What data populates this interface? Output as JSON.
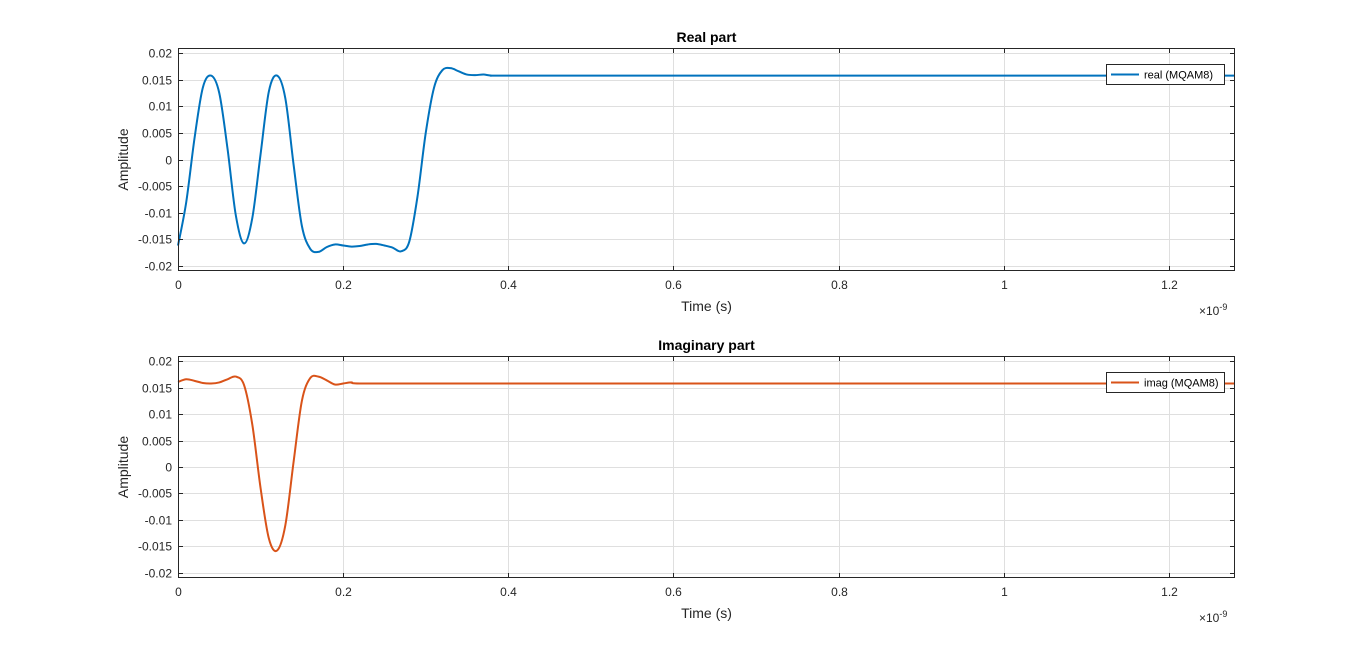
{
  "chart_data": [
    {
      "type": "line",
      "title": "Real part",
      "xlabel": "Time (s)",
      "ylabel": "Amplitude",
      "x_exponent_label": "×10",
      "x_exponent_power": "-9",
      "xlim": [
        0,
        1.28
      ],
      "ylim": [
        -0.021,
        0.021
      ],
      "grid": true,
      "legend_position": "top-right",
      "xticks": [
        0,
        0.2,
        0.4,
        0.6,
        0.8,
        1,
        1.2
      ],
      "xtick_labels": [
        "0",
        "0.2",
        "0.4",
        "0.6",
        "0.8",
        "1",
        "1.2"
      ],
      "yticks": [
        0.02,
        0.015,
        0.01,
        0.005,
        0,
        -0.005,
        -0.01,
        -0.015,
        -0.02
      ],
      "ytick_labels": [
        "0.02",
        "0.015",
        "0.01",
        "0.005",
        "0",
        "-0.005",
        "-0.01",
        "-0.015",
        "-0.02"
      ],
      "series": [
        {
          "name": "real (MQAM8)",
          "color": "#0072BD",
          "x": [
            0,
            0.01,
            0.02,
            0.03,
            0.04,
            0.05,
            0.06,
            0.07,
            0.08,
            0.09,
            0.1,
            0.11,
            0.12,
            0.13,
            0.14,
            0.15,
            0.16,
            0.17,
            0.18,
            0.19,
            0.2,
            0.21,
            0.22,
            0.23,
            0.24,
            0.25,
            0.26,
            0.27,
            0.28,
            0.29,
            0.3,
            0.31,
            0.32,
            0.33,
            0.34,
            0.35,
            0.36,
            0.37,
            0.38,
            0.4,
            0.6,
            0.8,
            1.0,
            1.2,
            1.28
          ],
          "y": [
            -0.0162,
            -0.008,
            0.004,
            0.0135,
            0.0158,
            0.0125,
            0.002,
            -0.0105,
            -0.0158,
            -0.011,
            0.001,
            0.0128,
            0.0158,
            0.0115,
            -0.001,
            -0.0125,
            -0.0168,
            -0.0174,
            -0.0165,
            -0.016,
            -0.0162,
            -0.0164,
            -0.0163,
            -0.016,
            -0.0159,
            -0.0162,
            -0.0166,
            -0.0173,
            -0.0155,
            -0.007,
            0.005,
            0.0135,
            0.0168,
            0.0172,
            0.0166,
            0.016,
            0.0159,
            0.016,
            0.0158,
            0.0158,
            0.0158,
            0.0158,
            0.0158,
            0.0158,
            0.0158
          ]
        }
      ]
    },
    {
      "type": "line",
      "title": "Imaginary part",
      "xlabel": "Time (s)",
      "ylabel": "Amplitude",
      "x_exponent_label": "×10",
      "x_exponent_power": "-9",
      "xlim": [
        0,
        1.28
      ],
      "ylim": [
        -0.021,
        0.021
      ],
      "grid": true,
      "legend_position": "top-right",
      "xticks": [
        0,
        0.2,
        0.4,
        0.6,
        0.8,
        1,
        1.2
      ],
      "xtick_labels": [
        "0",
        "0.2",
        "0.4",
        "0.6",
        "0.8",
        "1",
        "1.2"
      ],
      "yticks": [
        0.02,
        0.015,
        0.01,
        0.005,
        0,
        -0.005,
        -0.01,
        -0.015,
        -0.02
      ],
      "ytick_labels": [
        "0.02",
        "0.015",
        "0.01",
        "0.005",
        "0",
        "-0.005",
        "-0.01",
        "-0.015",
        "-0.02"
      ],
      "series": [
        {
          "name": "imag (MQAM8)",
          "color": "#D95319",
          "x": [
            0,
            0.01,
            0.02,
            0.03,
            0.04,
            0.05,
            0.06,
            0.07,
            0.08,
            0.09,
            0.1,
            0.11,
            0.12,
            0.13,
            0.14,
            0.15,
            0.16,
            0.17,
            0.18,
            0.19,
            0.2,
            0.21,
            0.22,
            0.3,
            0.6,
            0.9,
            1.2,
            1.28
          ],
          "y": [
            0.0161,
            0.0166,
            0.0163,
            0.0159,
            0.0158,
            0.016,
            0.0166,
            0.0171,
            0.0155,
            0.008,
            -0.004,
            -0.0135,
            -0.0158,
            -0.011,
            0.001,
            0.0125,
            0.0168,
            0.0171,
            0.0164,
            0.0156,
            0.0158,
            0.016,
            0.0158,
            0.0158,
            0.0158,
            0.0158,
            0.0158,
            0.0158
          ]
        }
      ]
    }
  ]
}
